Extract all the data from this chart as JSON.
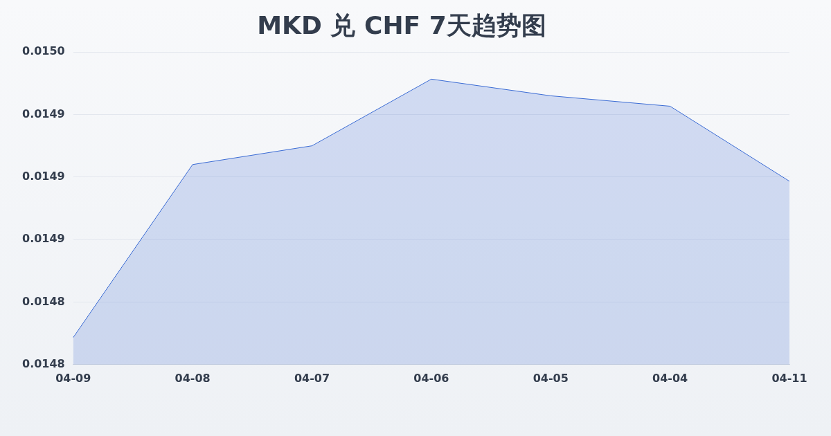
{
  "chart_data": {
    "type": "area",
    "title": "MKD 兑 CHF 7天趋势图",
    "categories": [
      "04-09",
      "04-08",
      "04-07",
      "04-06",
      "04-05",
      "04-04",
      "04-11"
    ],
    "series": [
      {
        "color": "#3a6bd4",
        "values": [
          0.014823,
          0.014906,
          0.014915,
          0.014947,
          0.014939,
          0.014934,
          0.014898
        ]
      }
    ],
    "ylim": [
      0.01481,
      0.01496
    ],
    "yticks": [
      {
        "value": 0.01481,
        "label": "0.0148"
      },
      {
        "value": 0.01484,
        "label": "0.0148"
      },
      {
        "value": 0.01487,
        "label": "0.0149"
      },
      {
        "value": 0.0149,
        "label": "0.0149"
      },
      {
        "value": 0.01493,
        "label": "0.0149"
      },
      {
        "value": 0.01496,
        "label": "0.0150"
      }
    ],
    "grid": "y",
    "legend": false
  }
}
